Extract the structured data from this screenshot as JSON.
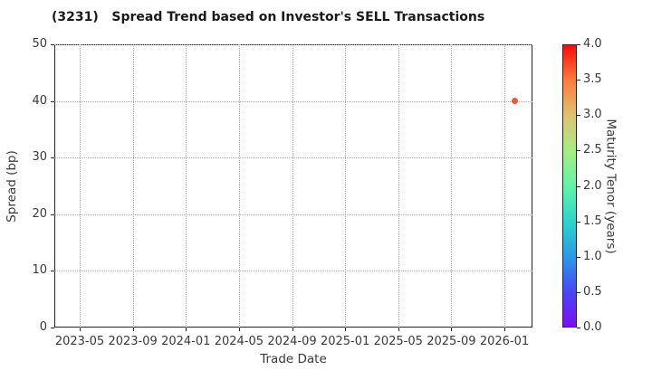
{
  "title": "(3231)   Spread Trend based on Investor's SELL Transactions",
  "colors": {
    "background": "#ffffff",
    "title_text": "#1a1a1a",
    "tick_text": "#3a3a3a",
    "spine": "#262626",
    "grid": "#a6a6a6",
    "point": "#f2583a"
  },
  "chart_data": {
    "type": "scatter",
    "title": "(3231)   Spread Trend based on Investor's SELL Transactions",
    "xlabel": "Trade Date",
    "ylabel": "Spread (bp)",
    "x_ticks": [
      "2023-05",
      "2023-09",
      "2024-01",
      "2024-05",
      "2024-09",
      "2025-01",
      "2025-05",
      "2025-09",
      "2026-01"
    ],
    "y_ticks": [
      0,
      10,
      20,
      30,
      40,
      50
    ],
    "ylim": [
      0,
      50
    ],
    "grid": "dotted both axes",
    "legend": "none",
    "points": [
      {
        "trade_date_approx": "2026-01-25",
        "spread_bp": 40,
        "maturity_years_approx": 3.7,
        "marker_color": "#f2583a",
        "marker_size_px": 7
      }
    ],
    "colorbar": {
      "label": "Maturity Tenor (years)",
      "min": 0.0,
      "max": 4.0,
      "tick_labels": [
        "4.0",
        "3.5",
        "3.0",
        "2.5",
        "2.0",
        "1.5",
        "1.0",
        "0.5",
        "0.0"
      ],
      "gradient_bottom_to_top": [
        "#7d0ff7",
        "#4a46f5",
        "#2b9ae8",
        "#2cd6cc",
        "#63f2a9",
        "#a5ee85",
        "#dfc273",
        "#fb7d3c",
        "#f90c0c"
      ]
    }
  }
}
